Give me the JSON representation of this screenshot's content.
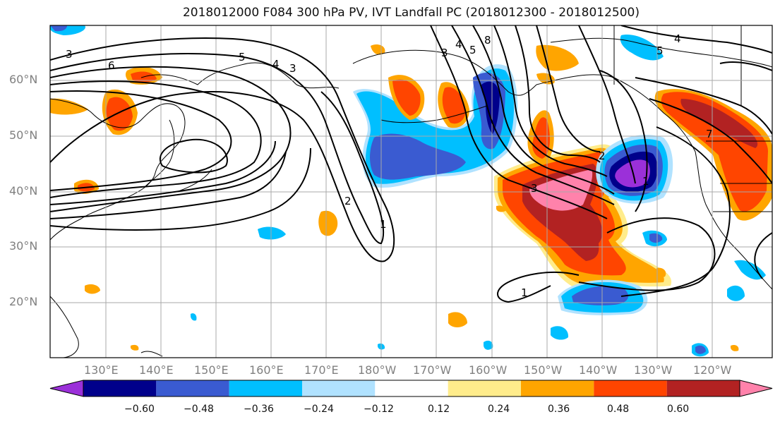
{
  "figure": {
    "title": "2018012000 F084 300 hPa PV, IVT Landfall PC (2018012300 - 2018012500)"
  },
  "map": {
    "lat_labels": [
      "60°N",
      "50°N",
      "40°N",
      "30°N",
      "20°N"
    ],
    "lon_labels": [
      "130°E",
      "140°E",
      "150°E",
      "160°E",
      "170°E",
      "180°W",
      "170°W",
      "160°W",
      "150°W",
      "140°W",
      "130°W",
      "120°W"
    ],
    "extent": {
      "lon_min": 120,
      "lon_max": 251,
      "lat_min": 10,
      "lat_max": 70
    },
    "contour_labels": [
      "3",
      "6",
      "5",
      "4",
      "3",
      "2",
      "1",
      "8",
      "5",
      "4",
      "3",
      "1",
      "5",
      "4",
      "3",
      "2",
      "1",
      "7"
    ]
  },
  "colorbar": {
    "tick_labels": [
      "−0.60",
      "−0.48",
      "−0.36",
      "−0.24",
      "−0.12",
      "0.12",
      "0.24",
      "0.36",
      "0.48",
      "0.60"
    ],
    "bins": [
      {
        "color": "#9b30d9"
      },
      {
        "color": "#00008b"
      },
      {
        "color": "#3a5bd1"
      },
      {
        "color": "#00bfff"
      },
      {
        "color": "#b0e2ff"
      },
      {
        "color": "#ffffff"
      },
      {
        "color": "#ffec8b"
      },
      {
        "color": "#ffa500"
      },
      {
        "color": "#ff4500"
      },
      {
        "color": "#b22222"
      },
      {
        "color": "#ff82ab"
      }
    ]
  }
}
